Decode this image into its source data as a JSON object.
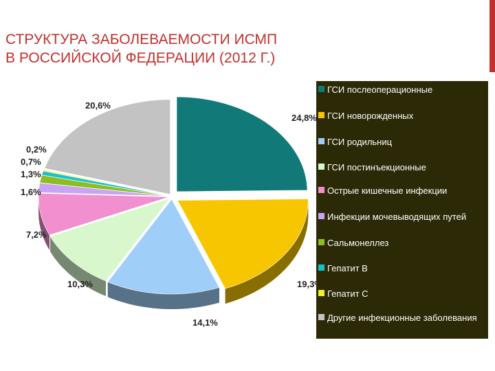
{
  "slide": {
    "title_line1": "СТРУКТУРА ЗАБОЛЕВАЕМОСТИ ИСМП",
    "title_line2": "В РОССИЙСКОЙ ФЕДЕРАЦИИ (2012 Г.)",
    "accent_color": "#c0302c",
    "legend_background": "#2c2a06"
  },
  "chart_data": {
    "type": "pie",
    "title": "СТРУКТУРА ЗАБОЛЕВАЕМОСТИ ИСМП В РОССИЙСКОЙ ФЕДЕРАЦИИ (2012 Г.)",
    "style": "3d-exploded",
    "legend_position": "right",
    "slices": [
      {
        "label": "ГСИ послеоперационные",
        "value": 24.8,
        "value_label": "24,8%",
        "color": "#117a78"
      },
      {
        "label": "ГСИ новорожденных",
        "value": 19.3,
        "value_label": "19,3%",
        "color": "#f7c600"
      },
      {
        "label": "ГСИ родильниц",
        "value": 14.1,
        "value_label": "14,1%",
        "color": "#9fcef8"
      },
      {
        "label": "ГСИ постинъекционные",
        "value": 10.3,
        "value_label": "10,3%",
        "color": "#d8f7cc"
      },
      {
        "label": "Острые кишечные инфекции",
        "value": 7.2,
        "value_label": "7,2%",
        "color": "#f28fcf"
      },
      {
        "label": "Инфекции мочевыводящих путей",
        "value": 1.6,
        "value_label": "1,6%",
        "color": "#c7a4f4"
      },
      {
        "label": "Сальмонеллез",
        "value": 1.3,
        "value_label": "1,3%",
        "color": "#8dbd22"
      },
      {
        "label": "Гепатит В",
        "value": 0.7,
        "value_label": "0,7%",
        "color": "#17c2cf"
      },
      {
        "label": "Гепатит С",
        "value": 0.2,
        "value_label": "0,2%",
        "color": "#f4ef2a"
      },
      {
        "label": "Другие инфекционные заболевания",
        "value": 20.6,
        "value_label": "20,6%",
        "color": "#c3c3c3"
      }
    ],
    "legend": [
      {
        "text": "ГСИ послеоперационные",
        "color": "#117a78"
      },
      {
        "text": "ГСИ новорожденных",
        "color": "#f7c600"
      },
      {
        "text": "ГСИ родильниц",
        "color": "#9fcef8"
      },
      {
        "text": "ГСИ постинъекционные",
        "color": "#d8f7cc"
      },
      {
        "text": "Острые кишечные инфекции",
        "color": "#f28fcf"
      },
      {
        "text": "Инфекции мочевыводящих путей",
        "color": "#c7a4f4"
      },
      {
        "text": "Сальмонеллез",
        "color": "#8dbd22"
      },
      {
        "text": "Гепатит В",
        "color": "#17c2cf"
      },
      {
        "text": "Гепатит С",
        "color": "#f4ef2a"
      },
      {
        "text": "Другие инфекционные заболевания",
        "color": "#c3c3c3"
      }
    ]
  }
}
